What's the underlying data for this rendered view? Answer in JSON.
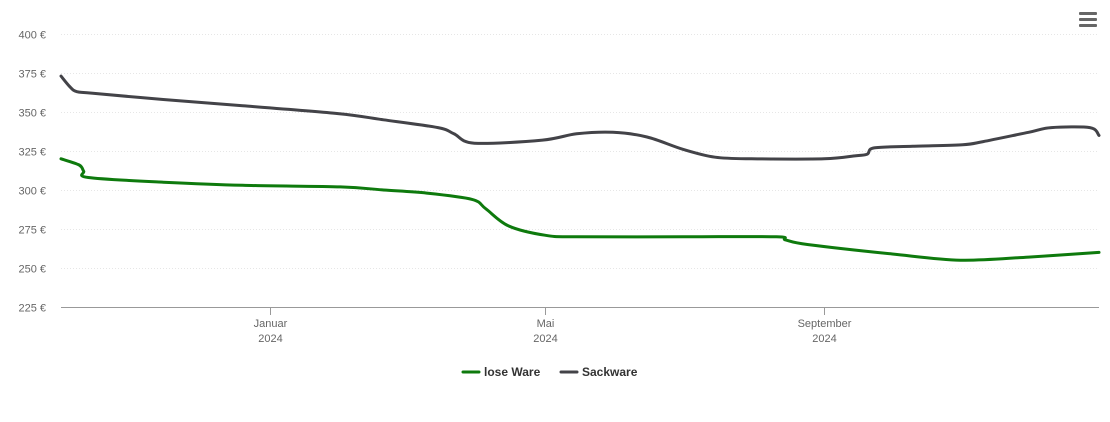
{
  "chart_data": {
    "type": "line",
    "title": "",
    "xlabel": "",
    "ylabel": "",
    "ylim": [
      225,
      400
    ],
    "y_ticks": [
      "225 €",
      "250 €",
      "275 €",
      "300 €",
      "325 €",
      "350 €",
      "375 €",
      "400 €"
    ],
    "y_tick_values": [
      225,
      250,
      275,
      300,
      325,
      350,
      375,
      400
    ],
    "xlim": [
      "2023-10-01",
      "2024-12-31"
    ],
    "x_ticks": [
      {
        "date": "2024-01-01",
        "month": "Januar",
        "year": "2024"
      },
      {
        "date": "2024-05-01",
        "month": "Mai",
        "year": "2024"
      },
      {
        "date": "2024-09-01",
        "month": "September",
        "year": "2024"
      }
    ],
    "grid": true,
    "legend_position": "bottom-center",
    "series": [
      {
        "name": "lose Ware",
        "color": "#0e7a0d",
        "points": [
          [
            "2023-10-01",
            320
          ],
          [
            "2023-10-09",
            316
          ],
          [
            "2023-10-11",
            312
          ],
          [
            "2023-10-13",
            308
          ],
          [
            "2023-11-15",
            305
          ],
          [
            "2023-12-20",
            303
          ],
          [
            "2024-02-01",
            302
          ],
          [
            "2024-02-20",
            300
          ],
          [
            "2024-03-10",
            298
          ],
          [
            "2024-03-30",
            294
          ],
          [
            "2024-04-05",
            288
          ],
          [
            "2024-04-15",
            277
          ],
          [
            "2024-05-01",
            271
          ],
          [
            "2024-05-15",
            270
          ],
          [
            "2024-07-01",
            270
          ],
          [
            "2024-08-11",
            270
          ],
          [
            "2024-08-15",
            268
          ],
          [
            "2024-08-25",
            265
          ],
          [
            "2024-10-01",
            259
          ],
          [
            "2024-10-31",
            255
          ],
          [
            "2024-11-30",
            257
          ],
          [
            "2024-12-31",
            260
          ]
        ]
      },
      {
        "name": "Sackware",
        "color": "#434348",
        "points": [
          [
            "2023-10-01",
            373
          ],
          [
            "2023-10-05",
            366
          ],
          [
            "2023-10-08",
            363
          ],
          [
            "2023-10-15",
            362
          ],
          [
            "2023-11-15",
            358
          ],
          [
            "2023-12-20",
            354
          ],
          [
            "2024-01-31",
            349
          ],
          [
            "2024-02-20",
            345
          ],
          [
            "2024-03-15",
            340
          ],
          [
            "2024-03-22",
            336
          ],
          [
            "2024-03-31",
            330
          ],
          [
            "2024-04-30",
            332
          ],
          [
            "2024-05-15",
            336
          ],
          [
            "2024-05-31",
            337
          ],
          [
            "2024-06-15",
            334
          ],
          [
            "2024-07-01",
            326
          ],
          [
            "2024-07-15",
            321
          ],
          [
            "2024-07-31",
            320
          ],
          [
            "2024-09-01",
            320
          ],
          [
            "2024-09-15",
            322
          ],
          [
            "2024-09-20",
            323
          ],
          [
            "2024-09-23",
            327
          ],
          [
            "2024-10-10",
            328
          ],
          [
            "2024-11-01",
            329
          ],
          [
            "2024-11-10",
            331
          ],
          [
            "2024-11-30",
            337
          ],
          [
            "2024-12-10",
            340
          ],
          [
            "2024-12-27",
            340
          ],
          [
            "2024-12-31",
            335
          ]
        ]
      }
    ]
  },
  "menu": {
    "icon": "hamburger-icon"
  }
}
